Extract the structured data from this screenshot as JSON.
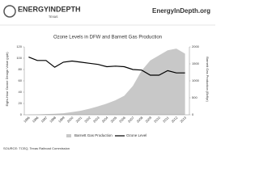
{
  "header": {
    "logo": "ENERGYINDEPTH",
    "region": "TEXAS",
    "site": "EnergyInDepth.org"
  },
  "chart_data": {
    "type": "area-line",
    "title": "Ozone Levels in DFW and Barnett Gas Production",
    "y_label": "Eight-Hour Ozone Design Value (ppb)",
    "y2_label": "Barnett Gas Production (Bcf/yr)",
    "categories": [
      "1995",
      "1996",
      "1997",
      "1998",
      "1999",
      "2000",
      "2001",
      "2002",
      "2003",
      "2004",
      "2005",
      "2006",
      "2007",
      "2008",
      "2009",
      "2010",
      "2011",
      "2012",
      "2013"
    ],
    "series": [
      {
        "name": "Barnett Gas Production",
        "color": "#c8c8c8",
        "axis": "y2",
        "kind": "area",
        "values": [
          5,
          10,
          20,
          30,
          45,
          80,
          120,
          180,
          250,
          330,
          430,
          560,
          850,
          1300,
          1600,
          1750,
          1900,
          1950,
          1800
        ]
      },
      {
        "name": "Ozone Level",
        "color": "#000000",
        "kind": "line",
        "values": [
          102,
          96,
          96,
          84,
          93,
          95,
          93,
          91,
          89,
          85,
          86,
          85,
          80,
          79,
          70,
          70,
          78,
          74,
          74
        ]
      }
    ],
    "ylim": [
      0,
      120
    ],
    "yticks": [
      0,
      20,
      40,
      60,
      80,
      100,
      120
    ],
    "y2lim": [
      0,
      2000
    ],
    "y2ticks": [
      0,
      500,
      1000,
      1500,
      2000
    ],
    "source": "SOURCE: TCEQ, Texas Railroad Commission"
  }
}
